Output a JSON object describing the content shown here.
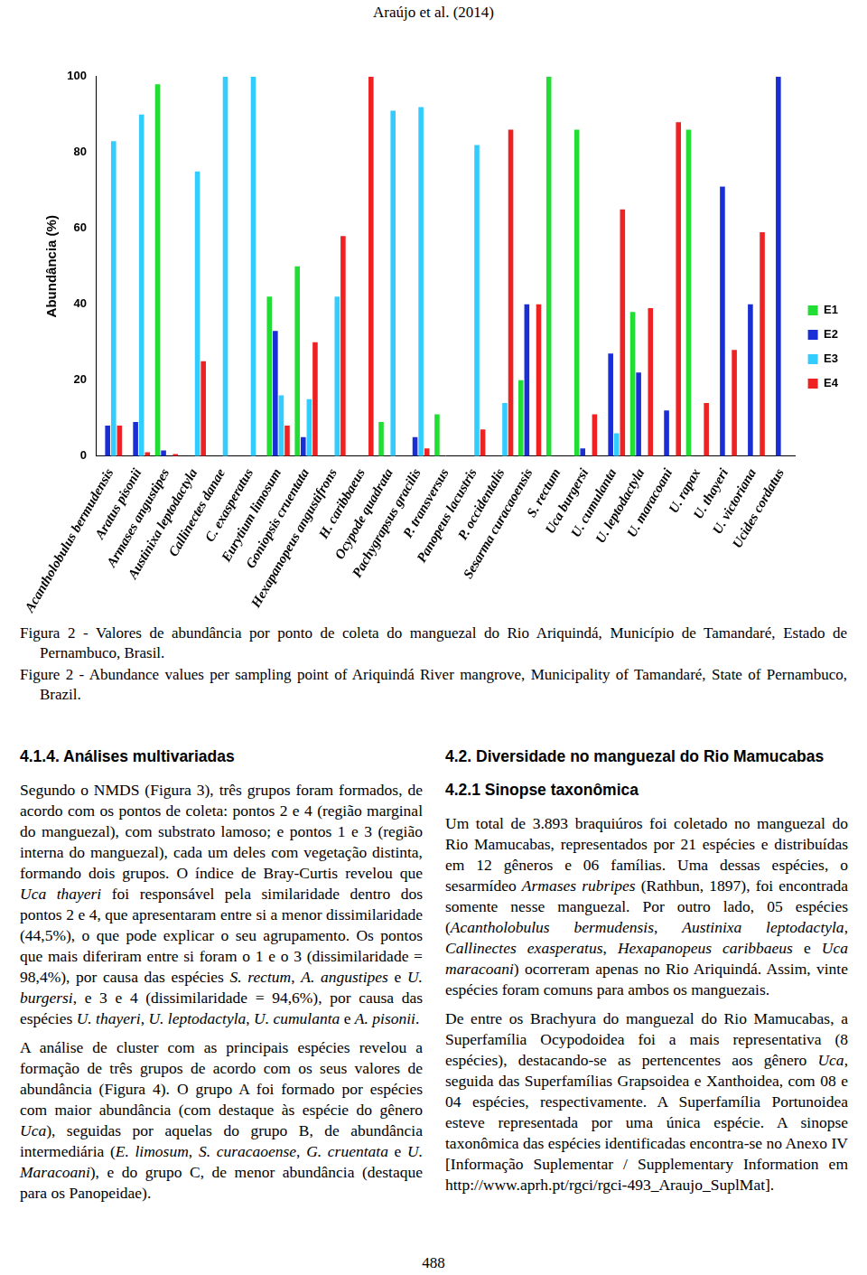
{
  "header": "Araújo et al. (2014)",
  "chart_data": {
    "type": "bar",
    "y_label": "Abundância (%)",
    "categories": [
      "Acantholobulus bermudensis",
      "Aratus pisonii",
      "Armases angustipes",
      "Austinixa leptodactyla",
      "Callinectes danae",
      "C. exasperatus",
      "Eurytium limosum",
      "Goniopsis cruentata",
      "Hexapanopeus angustifrons",
      "H. caribbaeus",
      "Ocypode quadrata",
      "Pachygrapsus gracilis",
      "P. transversus",
      "Panopeus lacustris",
      "P. occidentalis",
      "Sesarma curacaoensis",
      "S. rectum",
      "Uca burgersi",
      "U. cumulanta",
      "U. leptodactyla",
      "U. maracoani",
      "U. rapax",
      "U. thayeri",
      "U. victoriana",
      "Ucides cordatus"
    ],
    "series": [
      {
        "name": "E1",
        "color": "#22dd33",
        "values": [
          null,
          null,
          98,
          null,
          null,
          null,
          42,
          50,
          null,
          null,
          9,
          null,
          11,
          null,
          null,
          20,
          100,
          86,
          null,
          38,
          null,
          86,
          null,
          null,
          null
        ]
      },
      {
        "name": "E2",
        "color": "#1a2ed6",
        "values": [
          8,
          9,
          1.5,
          null,
          null,
          null,
          33,
          5,
          null,
          null,
          null,
          5,
          null,
          null,
          null,
          40,
          null,
          2,
          27,
          22,
          12,
          null,
          71,
          40,
          100
        ]
      },
      {
        "name": "E3",
        "color": "#33ccff",
        "values": [
          83,
          90,
          null,
          75,
          100,
          100,
          16,
          15,
          42,
          null,
          91,
          92,
          null,
          82,
          14,
          null,
          null,
          null,
          6,
          null,
          null,
          null,
          null,
          null,
          null
        ]
      },
      {
        "name": "E4",
        "color": "#ee2222",
        "values": [
          8,
          1,
          0.5,
          25,
          null,
          null,
          8,
          30,
          58,
          100,
          null,
          2,
          null,
          7,
          86,
          40,
          null,
          11,
          65,
          39,
          88,
          14,
          28,
          59,
          null
        ]
      }
    ],
    "ylim": [
      0,
      100
    ],
    "yticks": [
      0,
      20,
      40,
      60,
      80,
      100
    ],
    "grid": false,
    "legend": "right"
  },
  "caption": [
    "Figura 2 - Valores de abundância por ponto de coleta do manguezal do Rio Ariquindá, Município de Tamandaré, Estado de Pernambuco, Brasil.",
    "Figure 2 - Abundance values per sampling point of Ariquindá River mangrove, Municipality of Tamandaré, State of Pernambuco, Brazil."
  ],
  "left_column": [
    {
      "heading": "4.1.4. Análises multivariadas"
    },
    {
      "paragraph": [
        "Segundo o NMDS (Figura 3), três grupos foram formados, de acordo com os pontos de coleta: pontos 2 e 4 (região marginal do manguezal), com substrato lamoso; e pontos 1 e 3 (região interna do manguezal), cada um deles com vegetação distinta, formando dois grupos. O índice de Bray-Curtis revelou que ",
        {
          "italic": "Uca thayeri"
        },
        " foi responsável pela similaridade dentro dos pontos 2 e 4, que apresentaram entre si a menor dissimilaridade (44,5%), o que pode explicar o seu agrupamento. Os pontos que mais diferiram entre si foram o 1 e o 3 (dissimilaridade = 98,4%), por causa das espécies ",
        {
          "italic": "S. rectum"
        },
        ", ",
        {
          "italic": "A. angustipes"
        },
        " e ",
        {
          "italic": "U. burgersi"
        },
        ", e 3 e 4 (dissimilaridade = 94,6%), por causa das espécies ",
        {
          "italic": "U. thayeri"
        },
        ", ",
        {
          "italic": "U. leptodactyla"
        },
        ", ",
        {
          "italic": "U. cumulanta"
        },
        " e ",
        {
          "italic": "A. pisonii"
        },
        "."
      ]
    },
    {
      "paragraph": [
        "A análise de cluster com as principais espécies revelou a formação de três grupos de acordo com os seus valores de abundância (Figura 4). O grupo A foi formado por espécies com maior abundância (com destaque às espécie do gênero ",
        {
          "italic": "Uca"
        },
        "), seguidas por aquelas do grupo B, de abundância intermediária (",
        {
          "italic": "E. limosum"
        },
        ", ",
        {
          "italic": "S. curacaoense"
        },
        ", ",
        {
          "italic": "G. cruentata"
        },
        " e ",
        {
          "italic": "U. Maracoani"
        },
        "), e do grupo C, de menor abundância (destaque para os Panopeidae)."
      ]
    }
  ],
  "right_column": [
    {
      "heading": "4.2. Diversidade no manguezal do Rio Mamucabas"
    },
    {
      "heading": "4.2.1 Sinopse taxonômica"
    },
    {
      "paragraph": [
        "Um total de 3.893 braquiúros foi coletado no manguezal do Rio Mamucabas, representados por 21 espécies e distribuídas em 12 gêneros e 06 famílias. Uma dessas espécies, o sesarmídeo ",
        {
          "italic": "Armases rubripes"
        },
        " (Rathbun, 1897), foi encontrada somente nesse manguezal. Por outro lado, 05 espécies (",
        {
          "italic": "Acantholobulus bermudensis"
        },
        ", ",
        {
          "italic": "Austinixa leptodactyla"
        },
        ", ",
        {
          "italic": "Callinectes exasperatus"
        },
        ", ",
        {
          "italic": "Hexapanopeus caribbaeus"
        },
        " e ",
        {
          "italic": "Uca maracoani"
        },
        ") ocorreram apenas no Rio Ariquindá. Assim, vinte espécies foram comuns para ambos os manguezais."
      ]
    },
    {
      "paragraph": [
        "De entre os Brachyura do manguezal do Rio Mamucabas, a Superfamília Ocypodoidea foi a mais representativa (8 espécies), destacando-se as pertencentes aos gênero ",
        {
          "italic": "Uca"
        },
        ", seguida das Superfamílias Grapsoidea e Xanthoidea, com 08 e 04 espécies, respectivamente. A Superfamília Portunoidea esteve representada por uma única espécie. A sinopse taxonômica das espécies identificadas encontra-se no Anexo IV [Informação Suplementar / Supplementary Information em http://www.aprh.pt/rgci/rgci-493_Araujo_SuplMat]."
      ]
    }
  ],
  "page_number": "488"
}
